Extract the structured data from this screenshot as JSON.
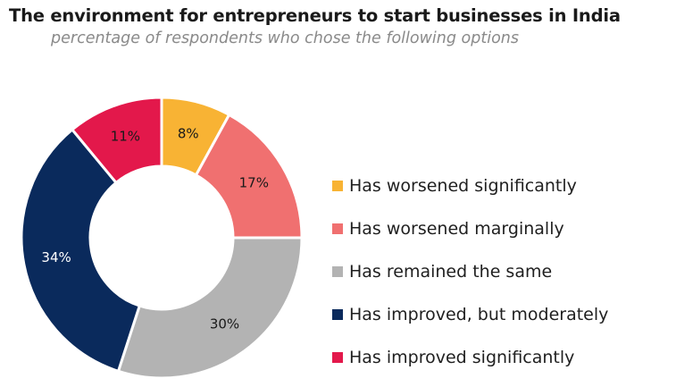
{
  "title": "The environment for entrepreneurs to start businesses in India",
  "subtitle": "percentage of respondents who chose the following options",
  "chart_data": {
    "type": "pie",
    "variant": "donut",
    "categories": [
      "Has worsened significantly",
      "Has worsened marginally",
      "Has remained the same",
      "Has improved, but moderately",
      "Has improved significantly"
    ],
    "values": [
      8,
      17,
      30,
      34,
      11
    ],
    "data_labels": [
      "8%",
      "17%",
      "30%",
      "34%",
      "11%"
    ],
    "colors": [
      "#F8B334",
      "#F07070",
      "#B3B3B3",
      "#0A2A5C",
      "#E3184B"
    ],
    "label_colors": [
      "#1a1a1a",
      "#1a1a1a",
      "#1a1a1a",
      "#ffffff",
      "#1a1a1a"
    ],
    "legend_position": "right"
  }
}
